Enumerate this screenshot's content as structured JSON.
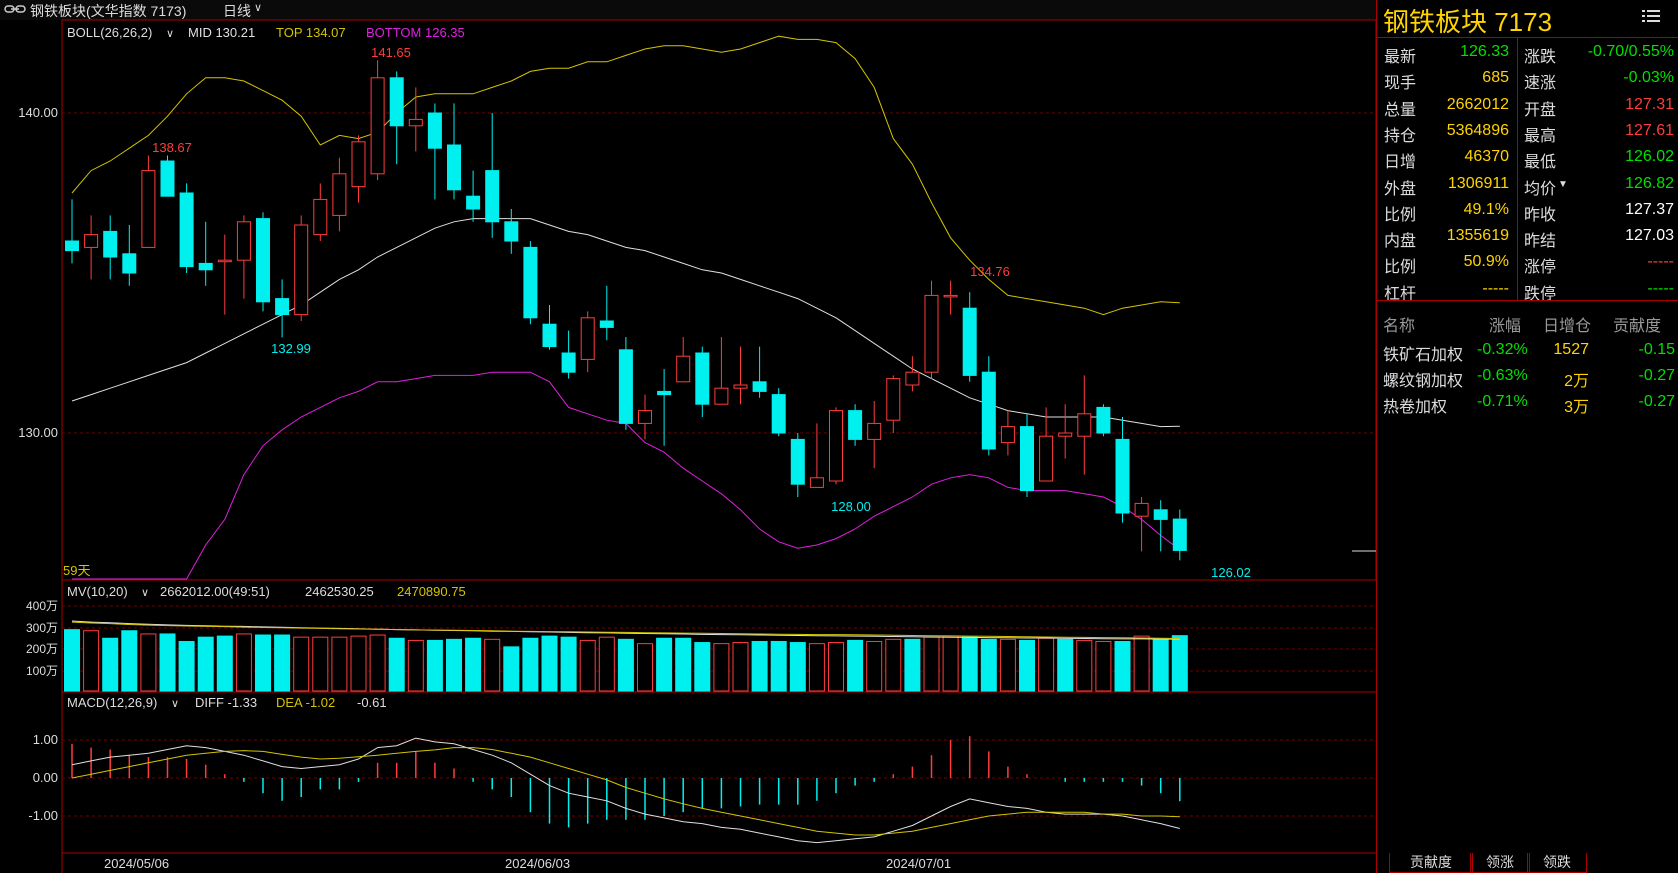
{
  "window": {
    "title": "钢铁板块(文华指数 7173)",
    "period": "日线",
    "period_arrow": "∨"
  },
  "boll_legend": {
    "name": "BOLL(26,26,2)",
    "mid_label": "MID 130.21",
    "top_label": "TOP 134.07",
    "bottom_label": "BOTTOM 126.35"
  },
  "price_axis": {
    "ticks": [
      "140.00",
      "130.00"
    ]
  },
  "annotations": {
    "high_1": "138.67",
    "high_2": "141.65",
    "high_3": "134.76",
    "low_1": "132.99",
    "low_2": "128.00",
    "low_3": "126.02",
    "bars_count": "59天"
  },
  "vol_legend": {
    "name": "MV(10,20)",
    "vol_value": "2662012.00(49:51)",
    "ma10": "2462530.25",
    "ma20": "2470890.75"
  },
  "vol_axis": {
    "ticks": [
      "400万",
      "300万",
      "200万",
      "100万"
    ]
  },
  "macd_legend": {
    "name": "MACD(12,26,9)",
    "diff": "DIFF -1.33",
    "dea": "DEA -1.02",
    "macd": "-0.61"
  },
  "macd_axis": {
    "ticks": [
      "1.00",
      "0.00",
      "-1.00"
    ]
  },
  "date_axis": {
    "labels": [
      "2024/05/06",
      "2024/06/03",
      "2024/07/01"
    ]
  },
  "quote": {
    "title": "钢铁板块  7173",
    "rows_left": [
      {
        "label": "最新",
        "value": "126.33",
        "color": "green"
      },
      {
        "label": "现手",
        "value": "685",
        "color": "yellow"
      },
      {
        "label": "总量",
        "value": "2662012",
        "color": "yellow"
      },
      {
        "label": "持仓",
        "value": "5364896",
        "color": "yellow"
      },
      {
        "label": "日增",
        "value": "46370",
        "color": "yellow"
      },
      {
        "label": "外盘",
        "value": "1306911",
        "color": "yellow"
      },
      {
        "label": "比例",
        "value": "49.1%",
        "color": "yellow"
      },
      {
        "label": "内盘",
        "value": "1355619",
        "color": "yellow"
      },
      {
        "label": "比例",
        "value": "50.9%",
        "color": "yellow"
      },
      {
        "label": "杠杆",
        "value": "-----",
        "color": "yellow"
      }
    ],
    "rows_right": [
      {
        "label": "涨跌",
        "value": "-0.70/0.55%",
        "color": "green"
      },
      {
        "label": "速涨",
        "value": "-0.03%",
        "color": "green"
      },
      {
        "label": "开盘",
        "value": "127.31",
        "color": "red"
      },
      {
        "label": "最高",
        "value": "127.61",
        "color": "red"
      },
      {
        "label": "最低",
        "value": "126.02",
        "color": "green"
      },
      {
        "label": "均价",
        "value": "126.82",
        "color": "green"
      },
      {
        "label": "昨收",
        "value": "127.37",
        "color": "white"
      },
      {
        "label": "昨结",
        "value": "127.03",
        "color": "white"
      },
      {
        "label": "涨停",
        "value": "-----",
        "color": "red"
      },
      {
        "label": "跌停",
        "value": "-----",
        "color": "green"
      }
    ]
  },
  "contrib_table": {
    "headers": [
      "名称",
      "涨幅",
      "日增仓",
      "贡献度"
    ],
    "rows": [
      {
        "name": "铁矿石加权",
        "change": "-0.32%",
        "oi": "1527",
        "contrib": "-0.15"
      },
      {
        "name": "螺纹钢加权",
        "change": "-0.63%",
        "oi": "2万",
        "contrib": "-0.27"
      },
      {
        "name": "热卷加权",
        "change": "-0.71%",
        "oi": "3万",
        "contrib": "-0.27"
      }
    ]
  },
  "tabs": [
    "贡献度",
    "领涨",
    "领跌"
  ],
  "colors": {
    "up": "#ff3c3c",
    "down": "#00f0f0",
    "mid": "#e0e0e0",
    "top": "#d4c400",
    "bottom": "#e020e0",
    "frame": "#b00000"
  },
  "chart_data": {
    "type": "candlestick",
    "ylim": [
      125.5,
      143.5
    ],
    "candles": [
      {
        "o": 136.0,
        "c": 135.7,
        "h": 137.3,
        "l": 135.3
      },
      {
        "o": 135.8,
        "c": 136.2,
        "h": 136.8,
        "l": 134.8
      },
      {
        "o": 136.3,
        "c": 135.5,
        "h": 136.8,
        "l": 134.8
      },
      {
        "o": 135.6,
        "c": 135.0,
        "h": 136.5,
        "l": 134.6
      },
      {
        "o": 135.8,
        "c": 138.2,
        "h": 138.67,
        "l": 135.8
      },
      {
        "o": 138.5,
        "c": 137.4,
        "h": 138.67,
        "l": 137.4
      },
      {
        "o": 137.5,
        "c": 135.2,
        "h": 137.8,
        "l": 135.0
      },
      {
        "o": 135.3,
        "c": 135.1,
        "h": 136.6,
        "l": 134.6
      },
      {
        "o": 135.4,
        "c": 135.4,
        "h": 136.2,
        "l": 133.7
      },
      {
        "o": 135.4,
        "c": 136.6,
        "h": 136.8,
        "l": 134.2
      },
      {
        "o": 136.7,
        "c": 134.1,
        "h": 136.9,
        "l": 133.8
      },
      {
        "o": 134.2,
        "c": 133.7,
        "h": 134.8,
        "l": 132.99
      },
      {
        "o": 133.7,
        "c": 136.5,
        "h": 136.8,
        "l": 133.5
      },
      {
        "o": 136.2,
        "c": 137.3,
        "h": 137.8,
        "l": 136.0
      },
      {
        "o": 136.8,
        "c": 138.1,
        "h": 138.6,
        "l": 136.3
      },
      {
        "o": 137.7,
        "c": 139.1,
        "h": 139.3,
        "l": 137.2
      },
      {
        "o": 138.1,
        "c": 141.1,
        "h": 141.65,
        "l": 137.9
      },
      {
        "o": 141.1,
        "c": 139.6,
        "h": 141.3,
        "l": 138.4
      },
      {
        "o": 139.6,
        "c": 139.8,
        "h": 140.8,
        "l": 138.8
      },
      {
        "o": 140.0,
        "c": 138.9,
        "h": 140.3,
        "l": 137.3
      },
      {
        "o": 139.0,
        "c": 137.6,
        "h": 140.3,
        "l": 137.3
      },
      {
        "o": 137.4,
        "c": 137.0,
        "h": 138.2,
        "l": 136.6
      },
      {
        "o": 138.2,
        "c": 136.6,
        "h": 140.0,
        "l": 136.1
      },
      {
        "o": 136.6,
        "c": 136.0,
        "h": 137.0,
        "l": 135.6
      },
      {
        "o": 135.8,
        "c": 133.6,
        "h": 136.0,
        "l": 133.4
      },
      {
        "o": 133.4,
        "c": 132.7,
        "h": 134.0,
        "l": 132.6
      },
      {
        "o": 132.5,
        "c": 131.9,
        "h": 133.2,
        "l": 131.7
      },
      {
        "o": 132.3,
        "c": 133.6,
        "h": 133.8,
        "l": 131.9
      },
      {
        "o": 133.5,
        "c": 133.3,
        "h": 134.6,
        "l": 132.9
      },
      {
        "o": 132.6,
        "c": 130.3,
        "h": 133.0,
        "l": 130.1
      },
      {
        "o": 130.3,
        "c": 130.7,
        "h": 131.2,
        "l": 129.8
      },
      {
        "o": 131.3,
        "c": 131.2,
        "h": 132.0,
        "l": 129.6
      },
      {
        "o": 131.6,
        "c": 132.4,
        "h": 133.0,
        "l": 131.6
      },
      {
        "o": 132.5,
        "c": 130.9,
        "h": 132.7,
        "l": 130.5
      },
      {
        "o": 130.9,
        "c": 131.4,
        "h": 133.0,
        "l": 130.9
      },
      {
        "o": 131.4,
        "c": 131.5,
        "h": 132.7,
        "l": 130.9
      },
      {
        "o": 131.6,
        "c": 131.3,
        "h": 132.7,
        "l": 131.1
      },
      {
        "o": 131.2,
        "c": 130.0,
        "h": 131.4,
        "l": 129.9
      },
      {
        "o": 129.8,
        "c": 128.4,
        "h": 130.0,
        "l": 128.0
      },
      {
        "o": 128.3,
        "c": 128.6,
        "h": 130.3,
        "l": 128.3
      },
      {
        "o": 128.5,
        "c": 130.7,
        "h": 130.8,
        "l": 128.4
      },
      {
        "o": 130.7,
        "c": 129.8,
        "h": 130.9,
        "l": 129.6
      },
      {
        "o": 129.8,
        "c": 130.3,
        "h": 131.0,
        "l": 128.9
      },
      {
        "o": 130.4,
        "c": 131.7,
        "h": 131.8,
        "l": 130.0
      },
      {
        "o": 131.5,
        "c": 131.9,
        "h": 132.4,
        "l": 131.3
      },
      {
        "o": 131.9,
        "c": 134.3,
        "h": 134.76,
        "l": 131.7
      },
      {
        "o": 134.3,
        "c": 134.3,
        "h": 134.76,
        "l": 133.7
      },
      {
        "o": 133.9,
        "c": 131.8,
        "h": 134.4,
        "l": 131.6
      },
      {
        "o": 131.9,
        "c": 129.5,
        "h": 132.4,
        "l": 129.3
      },
      {
        "o": 129.7,
        "c": 130.2,
        "h": 130.7,
        "l": 129.3
      },
      {
        "o": 130.2,
        "c": 128.2,
        "h": 130.6,
        "l": 128.0
      },
      {
        "o": 128.5,
        "c": 129.9,
        "h": 130.8,
        "l": 128.5
      },
      {
        "o": 129.9,
        "c": 130.0,
        "h": 130.9,
        "l": 129.2
      },
      {
        "o": 129.9,
        "c": 130.6,
        "h": 131.8,
        "l": 128.7
      },
      {
        "o": 130.8,
        "c": 130.0,
        "h": 130.9,
        "l": 129.9
      },
      {
        "o": 129.8,
        "c": 127.5,
        "h": 130.5,
        "l": 127.2
      },
      {
        "o": 127.4,
        "c": 127.8,
        "h": 128.0,
        "l": 126.3
      },
      {
        "o": 127.6,
        "c": 127.3,
        "h": 127.9,
        "l": 126.3
      },
      {
        "o": 127.31,
        "c": 126.33,
        "h": 127.61,
        "l": 126.02
      }
    ],
    "boll_mid": [
      131.0,
      131.2,
      131.4,
      131.6,
      131.8,
      132.0,
      132.2,
      132.5,
      132.8,
      133.1,
      133.4,
      133.7,
      134.0,
      134.4,
      134.8,
      135.1,
      135.5,
      135.8,
      136.1,
      136.4,
      136.6,
      136.7,
      136.7,
      136.7,
      136.7,
      136.5,
      136.3,
      136.2,
      136.0,
      135.8,
      135.7,
      135.5,
      135.3,
      135.1,
      135.0,
      134.8,
      134.6,
      134.4,
      134.2,
      133.9,
      133.6,
      133.2,
      132.8,
      132.4,
      132.0,
      131.7,
      131.4,
      131.1,
      130.9,
      130.7,
      130.6,
      130.5,
      130.5,
      130.5,
      130.5,
      130.4,
      130.3,
      130.2,
      130.21
    ],
    "boll_top": [
      137.5,
      138.2,
      138.5,
      138.9,
      139.3,
      139.9,
      140.6,
      141.1,
      141.1,
      141.0,
      140.7,
      140.4,
      139.9,
      139.0,
      139.3,
      139.2,
      139.4,
      140.0,
      140.5,
      140.6,
      140.6,
      140.6,
      140.8,
      141.0,
      141.3,
      141.4,
      141.4,
      141.6,
      141.6,
      141.8,
      142.0,
      142.1,
      142.1,
      142.0,
      141.9,
      142.0,
      142.2,
      142.4,
      142.3,
      142.3,
      142.2,
      141.7,
      140.8,
      139.2,
      138.4,
      137.2,
      136.1,
      135.4,
      134.8,
      134.3,
      134.2,
      134.1,
      134.0,
      133.9,
      133.7,
      133.9,
      134.0,
      134.1,
      134.07
    ],
    "boll_bottom": [
      116.0,
      117.2,
      118.5,
      119.8,
      121.3,
      122.7,
      124.2,
      126.5,
      127.3,
      128.7,
      129.6,
      130.1,
      130.5,
      130.8,
      131.1,
      131.3,
      131.6,
      131.6,
      131.7,
      131.8,
      131.8,
      131.8,
      131.9,
      131.9,
      131.9,
      131.6,
      130.8,
      130.6,
      130.4,
      130.3,
      129.7,
      129.4,
      128.9,
      128.5,
      128.1,
      127.6,
      127.0,
      126.6,
      126.4,
      126.5,
      126.7,
      127.0,
      127.4,
      127.7,
      128.0,
      128.4,
      128.6,
      128.7,
      128.6,
      128.3,
      128.2,
      128.2,
      128.2,
      128.1,
      128.0,
      127.7,
      127.3,
      126.8,
      126.35
    ],
    "volume": [
      290,
      285,
      250,
      285,
      270,
      270,
      235,
      255,
      260,
      270,
      265,
      265,
      255,
      255,
      255,
      260,
      265,
      250,
      240,
      240,
      245,
      250,
      245,
      210,
      250,
      260,
      255,
      240,
      255,
      245,
      225,
      250,
      250,
      230,
      225,
      230,
      235,
      235,
      230,
      225,
      230,
      240,
      235,
      245,
      245,
      255,
      260,
      255,
      245,
      245,
      240,
      250,
      245,
      240,
      235,
      235,
      260,
      245,
      262
    ],
    "volume_up": [
      false,
      true,
      false,
      false,
      true,
      false,
      false,
      false,
      false,
      true,
      false,
      false,
      true,
      true,
      true,
      true,
      true,
      false,
      true,
      false,
      false,
      false,
      true,
      false,
      false,
      false,
      false,
      true,
      true,
      false,
      true,
      false,
      false,
      false,
      true,
      true,
      false,
      false,
      false,
      true,
      true,
      false,
      true,
      true,
      false,
      true,
      true,
      false,
      false,
      true,
      false,
      true,
      false,
      true,
      true,
      false,
      true,
      false,
      false
    ],
    "vol_ma10": [
      330,
      325,
      322,
      318,
      315,
      312,
      310,
      308,
      306,
      305,
      303,
      301,
      299,
      297,
      296,
      294,
      292,
      290,
      289,
      287,
      286,
      285,
      283,
      282,
      280,
      279,
      277,
      276,
      275,
      273,
      272,
      271,
      270,
      268,
      267,
      266,
      265,
      264,
      263,
      262,
      261,
      260,
      259,
      258,
      257,
      256,
      255,
      254,
      253,
      252,
      251,
      251,
      250,
      249,
      248,
      247,
      247,
      246,
      246
    ],
    "vol_ma20": [
      325,
      321,
      318,
      314,
      311,
      309,
      307,
      305,
      304,
      302,
      300,
      299,
      297,
      296,
      294,
      293,
      292,
      290,
      289,
      288,
      287,
      286,
      285,
      283,
      282,
      281,
      280,
      279,
      278,
      277,
      276,
      275,
      274,
      273,
      272,
      271,
      270,
      269,
      268,
      267,
      267,
      266,
      265,
      264,
      263,
      262,
      261,
      260,
      259,
      258,
      257,
      256,
      255,
      254,
      253,
      252,
      251,
      250,
      249
    ],
    "diff": [
      0.35,
      0.45,
      0.55,
      0.6,
      0.65,
      0.75,
      0.85,
      0.8,
      0.7,
      0.6,
      0.45,
      0.3,
      0.25,
      0.3,
      0.35,
      0.5,
      0.8,
      0.85,
      1.05,
      0.95,
      0.9,
      0.75,
      0.6,
      0.4,
      0.1,
      -0.2,
      -0.4,
      -0.5,
      -0.6,
      -0.8,
      -0.95,
      -1.05,
      -1.15,
      -1.2,
      -1.3,
      -1.35,
      -1.45,
      -1.55,
      -1.65,
      -1.7,
      -1.65,
      -1.6,
      -1.55,
      -1.4,
      -1.25,
      -1.0,
      -0.75,
      -0.55,
      -0.65,
      -0.75,
      -0.8,
      -0.9,
      -0.95,
      -0.95,
      -0.95,
      -1.0,
      -1.1,
      -1.2,
      -1.33
    ],
    "dea": [
      0.0,
      0.1,
      0.2,
      0.3,
      0.4,
      0.5,
      0.6,
      0.65,
      0.7,
      0.72,
      0.7,
      0.62,
      0.55,
      0.5,
      0.52,
      0.56,
      0.6,
      0.65,
      0.7,
      0.74,
      0.8,
      0.8,
      0.75,
      0.65,
      0.55,
      0.4,
      0.25,
      0.1,
      -0.05,
      -0.25,
      -0.4,
      -0.55,
      -0.68,
      -0.8,
      -0.9,
      -1.0,
      -1.1,
      -1.2,
      -1.3,
      -1.4,
      -1.45,
      -1.5,
      -1.5,
      -1.45,
      -1.4,
      -1.3,
      -1.2,
      -1.1,
      -1.0,
      -0.95,
      -0.9,
      -0.9,
      -0.9,
      -0.9,
      -0.95,
      -0.95,
      -1.0,
      -1.0,
      -1.02
    ],
    "macd": [
      0.9,
      0.8,
      0.75,
      0.6,
      0.55,
      0.55,
      0.5,
      0.35,
      0.1,
      -0.1,
      -0.4,
      -0.6,
      -0.5,
      -0.3,
      -0.3,
      -0.1,
      0.4,
      0.4,
      0.7,
      0.4,
      0.25,
      -0.1,
      -0.3,
      -0.5,
      -0.9,
      -1.2,
      -1.3,
      -1.2,
      -1.1,
      -1.1,
      -1.1,
      -1.0,
      -0.9,
      -0.8,
      -0.8,
      -0.75,
      -0.7,
      -0.7,
      -0.7,
      -0.6,
      -0.4,
      -0.2,
      -0.1,
      0.1,
      0.3,
      0.6,
      1.0,
      1.1,
      0.7,
      0.3,
      0.1,
      0.0,
      -0.1,
      -0.1,
      -0.1,
      -0.1,
      -0.2,
      -0.4,
      -0.61
    ]
  }
}
